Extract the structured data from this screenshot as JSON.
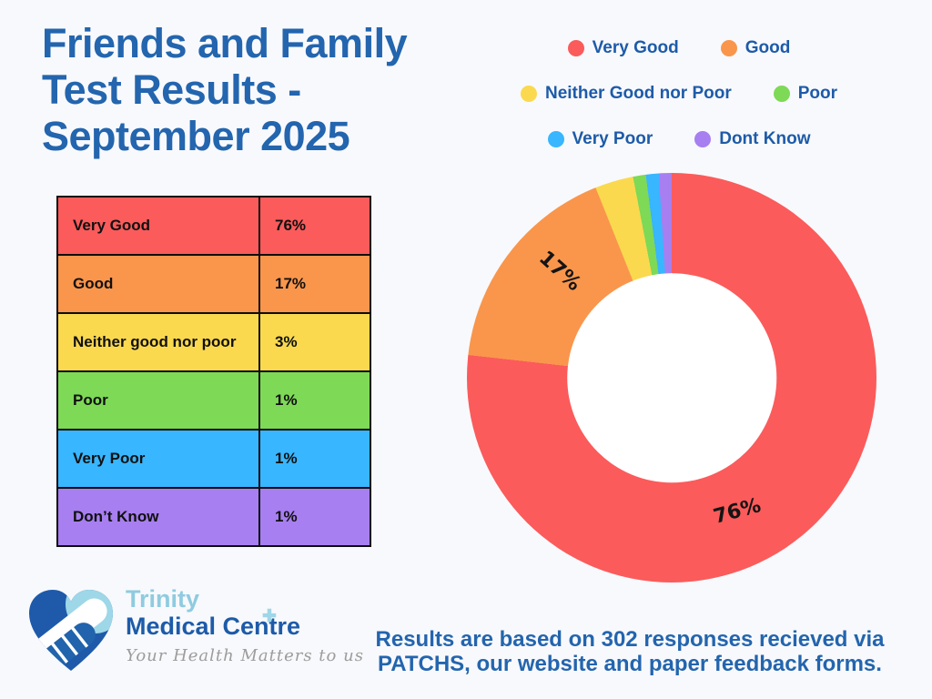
{
  "title": {
    "line1": "Friends and Family",
    "line2": "Test Results -",
    "line3": "September 2025"
  },
  "colors": {
    "background": "#F8F9FC",
    "title_blue": "#2365AE",
    "legend_text_blue": "#1D5BA9",
    "table_border_black": "#0D0D0D",
    "donut_hole_white": "#FFFFFF",
    "palette": [
      "#FB5B5B",
      "#F9964C",
      "#FAD94F",
      "#7ED957",
      "#38B6FF",
      "#A77FF0"
    ]
  },
  "legend": {
    "items": [
      {
        "label": "Very Good"
      },
      {
        "label": "Good"
      },
      {
        "label": "Neither Good nor Poor"
      },
      {
        "label": "Poor"
      },
      {
        "label": "Very Poor"
      },
      {
        "label": "Dont Know"
      }
    ]
  },
  "table": {
    "rows": [
      {
        "label": "Very Good",
        "value": "76%"
      },
      {
        "label": "Good",
        "value": "17%"
      },
      {
        "label": "Neither good nor poor",
        "value": "3%"
      },
      {
        "label": "Poor",
        "value": "1%"
      },
      {
        "label": "Very Poor",
        "value": "1%"
      },
      {
        "label": "Don’t Know",
        "value": "1%"
      }
    ]
  },
  "chart_data": {
    "type": "pie",
    "subtype": "donut",
    "title": "Friends and Family Test Results - September 2025",
    "categories": [
      "Very Good",
      "Good",
      "Neither Good nor Poor",
      "Poor",
      "Very Poor",
      "Dont Know"
    ],
    "values": [
      76,
      17,
      3,
      1,
      1,
      1
    ],
    "unit": "%",
    "colors": [
      "#FB5B5B",
      "#F9964C",
      "#FAD94F",
      "#7ED957",
      "#38B6FF",
      "#A77FF0"
    ],
    "start_angle_deg": 0,
    "direction": "clockwise",
    "inner_radius_ratio": 0.51,
    "legend_position": "top-right",
    "slice_labels": [
      {
        "text": "76%",
        "x_pct": 66.0,
        "y_pct": 82.7,
        "rotate_deg": -15
      },
      {
        "text": "17%",
        "x_pct": 22.6,
        "y_pct": 24.0,
        "rotate_deg": 42
      }
    ]
  },
  "logo": {
    "name_line1": "Trinity",
    "name_line2": "Medical Centre",
    "plus_glyph": "✚",
    "tagline": "Your Health Matters to us",
    "icon": "heart-handshake-icon",
    "colors": {
      "light_blue": "#8FCBE0",
      "dark_blue": "#1D5BA9",
      "tagline_gray": "#9C9C9C"
    }
  },
  "footer": {
    "line1": "Results are based on 302 responses recieved via",
    "line2": "PATCHS, our website and paper feedback forms."
  }
}
